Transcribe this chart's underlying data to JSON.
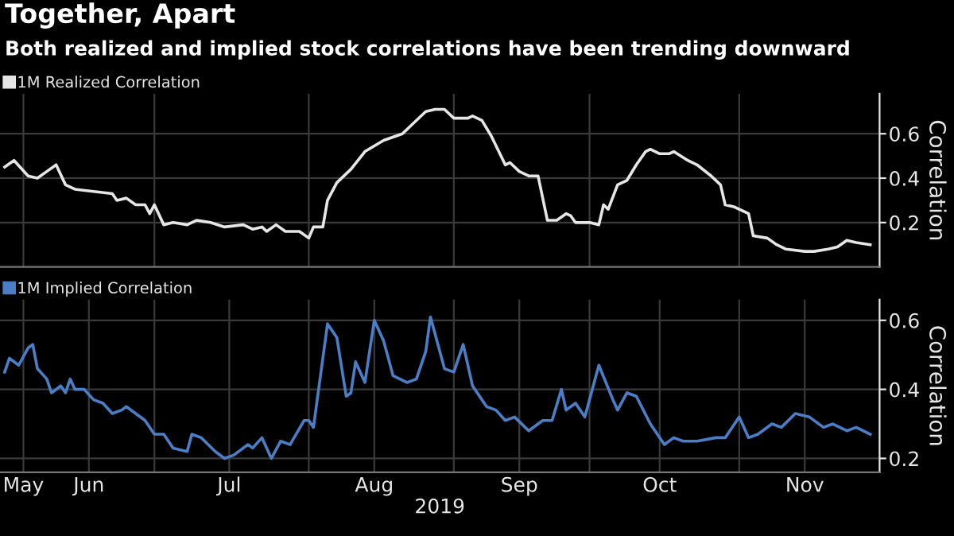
{
  "chart_data": [
    {
      "type": "line",
      "title": "Together, Apart",
      "subtitle": "Both realized and implied stock correlations have been trending downward",
      "ylabel": "Correlation",
      "legend": "top left",
      "grid": true,
      "tick_labels": "y",
      "xlim": [
        "2019-05-13",
        "2019-11-17"
      ],
      "xticks": [
        {
          "value": "2019-05-18",
          "label": null
        },
        {
          "value": "2019-06-15",
          "label": null
        },
        {
          "value": "2019-07-18",
          "label": null
        },
        {
          "value": "2019-08-18",
          "label": null
        },
        {
          "value": "2019-09-16",
          "label": null
        },
        {
          "value": "2019-10-18",
          "label": null
        }
      ],
      "ylim": [
        0,
        0.78
      ],
      "yticks": [
        0.2,
        0.4,
        0.6
      ],
      "x": [
        "2019-05-14",
        "2019-05-16",
        "2019-05-19",
        "2019-05-21",
        "2019-05-23",
        "2019-05-25",
        "2019-05-27",
        "2019-05-29",
        "2019-06-02",
        "2019-06-06",
        "2019-06-07",
        "2019-06-09",
        "2019-06-11",
        "2019-06-13",
        "2019-06-14",
        "2019-06-15",
        "2019-06-17",
        "2019-06-19",
        "2019-06-22",
        "2019-06-24",
        "2019-06-27",
        "2019-06-30",
        "2019-07-04",
        "2019-07-06",
        "2019-07-08",
        "2019-07-09",
        "2019-07-11",
        "2019-07-13",
        "2019-07-16",
        "2019-07-18",
        "2019-07-19",
        "2019-07-21",
        "2019-07-22",
        "2019-07-24",
        "2019-07-27",
        "2019-07-30",
        "2019-08-03",
        "2019-08-07",
        "2019-08-09",
        "2019-08-12",
        "2019-08-14",
        "2019-08-16",
        "2019-08-18",
        "2019-08-21",
        "2019-08-22",
        "2019-08-24",
        "2019-08-26",
        "2019-08-29",
        "2019-08-30",
        "2019-09-01",
        "2019-09-03",
        "2019-09-05",
        "2019-09-07",
        "2019-09-09",
        "2019-09-11",
        "2019-09-12",
        "2019-09-13",
        "2019-09-16",
        "2019-09-18",
        "2019-09-19",
        "2019-09-20",
        "2019-09-22",
        "2019-09-24",
        "2019-09-26",
        "2019-09-28",
        "2019-09-29",
        "2019-10-01",
        "2019-10-03",
        "2019-10-04",
        "2019-10-07",
        "2019-10-09",
        "2019-10-12",
        "2019-10-14",
        "2019-10-15",
        "2019-10-17",
        "2019-10-20",
        "2019-10-21",
        "2019-10-24",
        "2019-10-26",
        "2019-10-28",
        "2019-11-01",
        "2019-11-03",
        "2019-11-06",
        "2019-11-08",
        "2019-11-10",
        "2019-11-12",
        "2019-11-15"
      ],
      "series": [
        {
          "name": "1M Realized Correlation",
          "color": "#e6e6e6",
          "values": [
            0.45,
            0.48,
            0.41,
            0.4,
            0.43,
            0.46,
            0.37,
            0.35,
            0.34,
            0.33,
            0.3,
            0.31,
            0.28,
            0.28,
            0.24,
            0.28,
            0.19,
            0.2,
            0.19,
            0.21,
            0.2,
            0.18,
            0.19,
            0.17,
            0.18,
            0.16,
            0.19,
            0.16,
            0.16,
            0.13,
            0.18,
            0.18,
            0.3,
            0.38,
            0.44,
            0.52,
            0.57,
            0.6,
            0.64,
            0.7,
            0.71,
            0.71,
            0.67,
            0.67,
            0.68,
            0.66,
            0.59,
            0.46,
            0.47,
            0.43,
            0.41,
            0.41,
            0.21,
            0.21,
            0.24,
            0.23,
            0.2,
            0.2,
            0.19,
            0.28,
            0.26,
            0.37,
            0.39,
            0.46,
            0.52,
            0.53,
            0.51,
            0.51,
            0.52,
            0.48,
            0.46,
            0.41,
            0.37,
            0.28,
            0.27,
            0.24,
            0.14,
            0.13,
            0.1,
            0.08,
            0.07,
            0.07,
            0.08,
            0.09,
            0.12,
            0.11,
            0.1
          ]
        }
      ]
    },
    {
      "type": "line",
      "xlabel": "2019",
      "ylabel": "Correlation",
      "legend": "top left",
      "grid": true,
      "xlim": [
        "2019-05-13",
        "2019-11-17"
      ],
      "xticks": [
        {
          "value": "2019-05-18",
          "label": "May"
        },
        {
          "value": "2019-06-01",
          "label": "Jun"
        },
        {
          "value": "2019-06-15",
          "label": null
        },
        {
          "value": "2019-07-01",
          "label": "Jul"
        },
        {
          "value": "2019-07-18",
          "label": null
        },
        {
          "value": "2019-08-01",
          "label": "Aug"
        },
        {
          "value": "2019-08-18",
          "label": null
        },
        {
          "value": "2019-09-01",
          "label": "Sep"
        },
        {
          "value": "2019-09-16",
          "label": null
        },
        {
          "value": "2019-10-01",
          "label": "Oct"
        },
        {
          "value": "2019-10-18",
          "label": null
        },
        {
          "value": "2019-11-01",
          "label": "Nov"
        }
      ],
      "ylim": [
        0.16,
        0.66
      ],
      "yticks": [
        0.2,
        0.4,
        0.6
      ],
      "x": [
        "2019-05-14",
        "2019-05-15",
        "2019-05-17",
        "2019-05-19",
        "2019-05-20",
        "2019-05-21",
        "2019-05-23",
        "2019-05-24",
        "2019-05-26",
        "2019-05-27",
        "2019-05-28",
        "2019-05-29",
        "2019-05-31",
        "2019-06-02",
        "2019-06-04",
        "2019-06-06",
        "2019-06-08",
        "2019-06-09",
        "2019-06-11",
        "2019-06-13",
        "2019-06-15",
        "2019-06-17",
        "2019-06-19",
        "2019-06-22",
        "2019-06-23",
        "2019-06-25",
        "2019-06-28",
        "2019-06-30",
        "2019-07-02",
        "2019-07-05",
        "2019-07-06",
        "2019-07-08",
        "2019-07-10",
        "2019-07-12",
        "2019-07-14",
        "2019-07-17",
        "2019-07-18",
        "2019-07-19",
        "2019-07-22",
        "2019-07-24",
        "2019-07-26",
        "2019-07-27",
        "2019-07-28",
        "2019-07-30",
        "2019-08-01",
        "2019-08-03",
        "2019-08-05",
        "2019-08-08",
        "2019-08-10",
        "2019-08-12",
        "2019-08-13",
        "2019-08-16",
        "2019-08-18",
        "2019-08-20",
        "2019-08-22",
        "2019-08-25",
        "2019-08-27",
        "2019-08-29",
        "2019-08-31",
        "2019-09-03",
        "2019-09-06",
        "2019-09-08",
        "2019-09-10",
        "2019-09-11",
        "2019-09-13",
        "2019-09-15",
        "2019-09-18",
        "2019-09-21",
        "2019-09-22",
        "2019-09-24",
        "2019-09-26",
        "2019-09-29",
        "2019-10-02",
        "2019-10-04",
        "2019-10-06",
        "2019-10-09",
        "2019-10-13",
        "2019-10-15",
        "2019-10-18",
        "2019-10-20",
        "2019-10-22",
        "2019-10-25",
        "2019-10-27",
        "2019-10-30",
        "2019-11-02",
        "2019-11-05",
        "2019-11-07",
        "2019-11-10",
        "2019-11-12",
        "2019-11-15"
      ],
      "series": [
        {
          "name": "1M Implied Correlation",
          "color": "#4a7fc8",
          "values": [
            0.45,
            0.49,
            0.47,
            0.52,
            0.53,
            0.46,
            0.43,
            0.39,
            0.41,
            0.39,
            0.43,
            0.4,
            0.4,
            0.37,
            0.36,
            0.33,
            0.34,
            0.35,
            0.33,
            0.31,
            0.27,
            0.27,
            0.23,
            0.22,
            0.27,
            0.26,
            0.22,
            0.2,
            0.21,
            0.24,
            0.23,
            0.26,
            0.2,
            0.25,
            0.24,
            0.31,
            0.31,
            0.29,
            0.59,
            0.55,
            0.38,
            0.39,
            0.48,
            0.42,
            0.6,
            0.54,
            0.44,
            0.42,
            0.43,
            0.51,
            0.61,
            0.46,
            0.45,
            0.53,
            0.41,
            0.35,
            0.34,
            0.31,
            0.32,
            0.28,
            0.31,
            0.31,
            0.4,
            0.34,
            0.36,
            0.32,
            0.47,
            0.37,
            0.34,
            0.39,
            0.38,
            0.3,
            0.24,
            0.26,
            0.25,
            0.25,
            0.26,
            0.26,
            0.32,
            0.26,
            0.27,
            0.3,
            0.29,
            0.33,
            0.32,
            0.29,
            0.3,
            0.28,
            0.29,
            0.27
          ]
        }
      ]
    }
  ]
}
